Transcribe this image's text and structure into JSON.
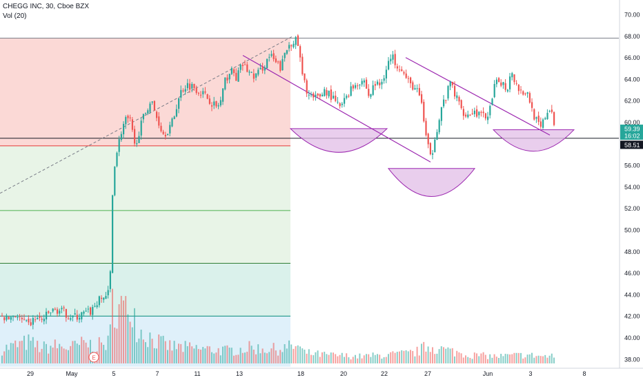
{
  "header": {
    "title": "CHEGG INC, 30, Cboe BZX",
    "volume_label": "Vol (20)"
  },
  "colors": {
    "up": "#26a69a",
    "down": "#ef5350",
    "pattern": "#9c27b0",
    "pattern_fill": "#e1bee7",
    "zone_red": "#fbd5d2",
    "zone_green": "#e6f3e4",
    "zone_teal": "#d6efe9",
    "zone_blue": "#dbeefa",
    "badge_green": "#26a69a",
    "badge_black": "#131722"
  },
  "badges": {
    "last_price": "59.39",
    "countdown": "16:02",
    "level": "58.51"
  },
  "earnings_marker": "E",
  "chart_data": {
    "type": "candlestick",
    "title": "CHEGG INC, 30, Cboe BZX",
    "interval": "30",
    "y_axis": {
      "position": "right",
      "ylim": [
        37.3,
        71.4
      ],
      "ticks": [
        "70.00",
        "68.00",
        "66.00",
        "64.00",
        "62.00",
        "60.00",
        "58.00",
        "56.00",
        "54.00",
        "52.00",
        "50.00",
        "48.00",
        "46.00",
        "44.00",
        "42.00",
        "40.00",
        "38.00"
      ]
    },
    "x_axis": {
      "tick_labels": [
        "29",
        "May",
        "5",
        "7",
        "11",
        "13",
        "18",
        "20",
        "22",
        "27",
        "Jun",
        "3",
        "8"
      ]
    },
    "price_path": [
      [
        0,
        42.0
      ],
      [
        10,
        41.7
      ],
      [
        20,
        42.2
      ],
      [
        30,
        41.6
      ],
      [
        40,
        41.1
      ],
      [
        50,
        41.8
      ],
      [
        60,
        41.6
      ],
      [
        70,
        42.3
      ],
      [
        80,
        42.6
      ],
      [
        90,
        42.4
      ],
      [
        100,
        42.0
      ],
      [
        110,
        41.9
      ],
      [
        120,
        42.2
      ],
      [
        130,
        42.4
      ],
      [
        140,
        43.3
      ],
      [
        150,
        43.8
      ],
      [
        158,
        44.2
      ],
      [
        163,
        55.5
      ],
      [
        170,
        57.8
      ],
      [
        176,
        59.5
      ],
      [
        182,
        60.3
      ],
      [
        188,
        60.0
      ],
      [
        194,
        57.8
      ],
      [
        200,
        59.0
      ],
      [
        206,
        60.3
      ],
      [
        212,
        61.3
      ],
      [
        218,
        62.0
      ],
      [
        224,
        60.8
      ],
      [
        230,
        59.8
      ],
      [
        236,
        58.9
      ],
      [
        244,
        59.4
      ],
      [
        250,
        60.2
      ],
      [
        256,
        61.8
      ],
      [
        262,
        63.0
      ],
      [
        270,
        63.5
      ],
      [
        280,
        63.3
      ],
      [
        288,
        62.9
      ],
      [
        296,
        62.5
      ],
      [
        304,
        62.0
      ],
      [
        312,
        61.4
      ],
      [
        318,
        61.7
      ],
      [
        326,
        64.0
      ],
      [
        334,
        64.8
      ],
      [
        342,
        64.1
      ],
      [
        350,
        65.4
      ],
      [
        358,
        64.8
      ],
      [
        366,
        64.2
      ],
      [
        374,
        64.6
      ],
      [
        382,
        65.3
      ],
      [
        390,
        66.2
      ],
      [
        398,
        65.5
      ],
      [
        406,
        65.0
      ],
      [
        412,
        66.4
      ],
      [
        418,
        67.2
      ],
      [
        424,
        67.6
      ],
      [
        430,
        67.5
      ],
      [
        438,
        64.0
      ],
      [
        446,
        62.6
      ],
      [
        454,
        62.1
      ],
      [
        462,
        62.4
      ],
      [
        470,
        63.0
      ],
      [
        478,
        62.5
      ],
      [
        486,
        61.7
      ],
      [
        494,
        61.4
      ],
      [
        502,
        62.6
      ],
      [
        510,
        63.3
      ],
      [
        518,
        63.7
      ],
      [
        526,
        64.0
      ],
      [
        534,
        62.3
      ],
      [
        542,
        63.6
      ],
      [
        550,
        63.4
      ],
      [
        556,
        64.5
      ],
      [
        562,
        65.6
      ],
      [
        568,
        66.0
      ],
      [
        574,
        65.4
      ],
      [
        580,
        65.2
      ],
      [
        586,
        64.2
      ],
      [
        592,
        63.6
      ],
      [
        598,
        63.3
      ],
      [
        604,
        62.8
      ],
      [
        610,
        61.8
      ],
      [
        616,
        58.8
      ],
      [
        620,
        57.5
      ],
      [
        624,
        56.3
      ],
      [
        628,
        58.5
      ],
      [
        634,
        59.8
      ],
      [
        640,
        61.6
      ],
      [
        646,
        62.4
      ],
      [
        652,
        63.8
      ],
      [
        658,
        62.6
      ],
      [
        664,
        61.8
      ],
      [
        670,
        61.0
      ],
      [
        678,
        60.7
      ],
      [
        686,
        61.0
      ],
      [
        694,
        60.7
      ],
      [
        702,
        60.4
      ],
      [
        710,
        61.3
      ],
      [
        716,
        63.3
      ],
      [
        722,
        63.9
      ],
      [
        728,
        63.6
      ],
      [
        734,
        63.0
      ],
      [
        740,
        65.0
      ],
      [
        746,
        63.7
      ],
      [
        752,
        63.0
      ],
      [
        758,
        62.8
      ],
      [
        764,
        62.6
      ],
      [
        768,
        61.7
      ],
      [
        772,
        60.8
      ],
      [
        776,
        60.2
      ],
      [
        782,
        59.3
      ],
      [
        788,
        60.3
      ],
      [
        794,
        61.3
      ],
      [
        800,
        60.4
      ],
      [
        805,
        59.4
      ]
    ],
    "volume_path": [
      [
        0,
        0.2
      ],
      [
        20,
        0.25
      ],
      [
        40,
        0.3
      ],
      [
        60,
        0.22
      ],
      [
        80,
        0.25
      ],
      [
        100,
        0.22
      ],
      [
        120,
        0.28
      ],
      [
        140,
        0.25
      ],
      [
        158,
        0.3
      ],
      [
        163,
        1.0
      ],
      [
        170,
        0.75
      ],
      [
        176,
        0.8
      ],
      [
        182,
        0.7
      ],
      [
        190,
        1.0
      ],
      [
        196,
        0.55
      ],
      [
        204,
        0.45
      ],
      [
        212,
        0.4
      ],
      [
        220,
        0.35
      ],
      [
        240,
        0.25
      ],
      [
        270,
        0.22
      ],
      [
        300,
        0.2
      ],
      [
        330,
        0.18
      ],
      [
        360,
        0.22
      ],
      [
        400,
        0.2
      ],
      [
        430,
        0.25
      ],
      [
        440,
        0.15
      ],
      [
        470,
        0.12
      ],
      [
        520,
        0.1
      ],
      [
        560,
        0.12
      ],
      [
        600,
        0.15
      ],
      [
        620,
        0.25
      ],
      [
        640,
        0.2
      ],
      [
        680,
        0.12
      ],
      [
        720,
        0.1
      ],
      [
        760,
        0.12
      ],
      [
        790,
        0.1
      ],
      [
        805,
        0.1
      ]
    ],
    "overlays": {
      "zones": [
        {
          "color": "zone_red",
          "y_top": 67.8,
          "y_bottom": 57.8
        },
        {
          "color": "zone_green",
          "y_top": 57.8,
          "y_bottom": 51.8
        },
        {
          "color": "zone_green",
          "y_top": 51.8,
          "y_bottom": 46.9
        },
        {
          "color": "zone_teal",
          "y_top": 46.9,
          "y_bottom": 42.0
        },
        {
          "color": "zone_blue",
          "y_top": 42.0,
          "y_bottom": 37.3
        }
      ],
      "horizontal_lines": [
        {
          "y": 67.8,
          "color": "#787b86"
        },
        {
          "y": 57.8,
          "color": "#e53935"
        },
        {
          "y": 51.8,
          "color": "#4caf50"
        },
        {
          "y": 46.9,
          "color": "#2e7d32"
        },
        {
          "y": 42.0,
          "color": "#00897b"
        },
        {
          "y": 58.51,
          "color": "#131722"
        }
      ],
      "trend_lines": [
        {
          "from": [
            352,
            66.2
          ],
          "to": [
            624,
            56.3
          ]
        },
        {
          "from": [
            588,
            66.0
          ],
          "to": [
            797,
            58.8
          ]
        }
      ],
      "dashed_lines": [
        {
          "from": [
            0,
            53.4
          ],
          "to": [
            425,
            68.0
          ]
        }
      ],
      "bowls": [
        {
          "x1": 421,
          "x2": 561,
          "y_top": 59.4,
          "y_bottom": 57.2
        },
        {
          "x1": 563,
          "x2": 688,
          "y_top": 55.7,
          "y_bottom": 53.1
        },
        {
          "x1": 715,
          "x2": 832,
          "y_top": 59.3,
          "y_bottom": 57.3
        }
      ]
    }
  }
}
